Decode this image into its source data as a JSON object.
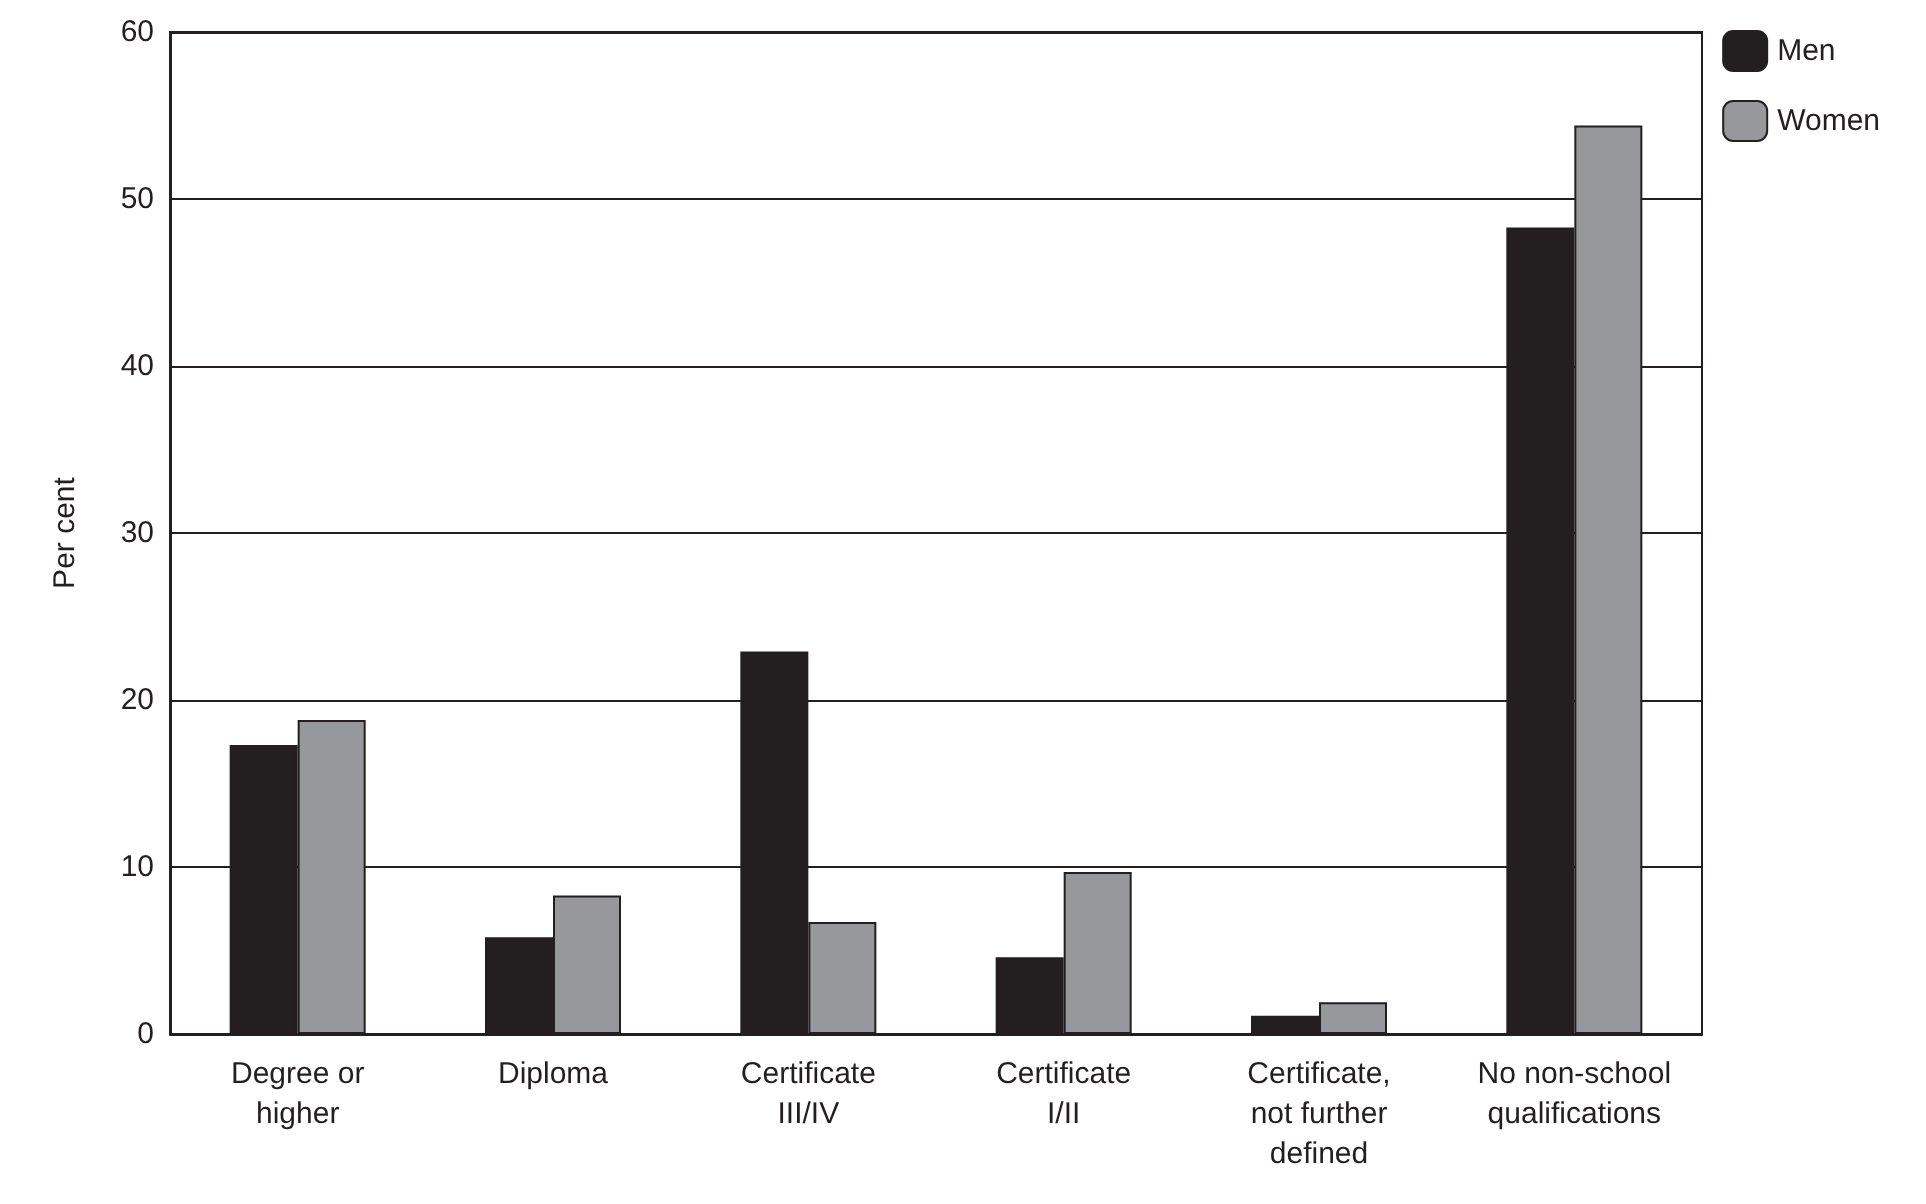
{
  "chart_data": {
    "type": "bar",
    "ylabel": "Per cent",
    "categories": [
      "Degree or\nhigher",
      "Diploma",
      "Certificate\nIII/IV",
      "Certificate\nI/II",
      "Certificate,\nnot further\ndefined",
      "No non-school\nqualifications"
    ],
    "series": [
      {
        "name": "Men",
        "color": "#231f20",
        "values": [
          17.3,
          5.8,
          22.9,
          4.6,
          1.1,
          48.3
        ]
      },
      {
        "name": "Women",
        "color": "#97989c",
        "values": [
          18.8,
          8.3,
          6.7,
          9.7,
          1.9,
          54.4
        ]
      }
    ],
    "ylim": [
      0,
      60
    ],
    "yticks": [
      0,
      10,
      20,
      30,
      40,
      50,
      60
    ],
    "grid": "y",
    "legend": "top right"
  }
}
